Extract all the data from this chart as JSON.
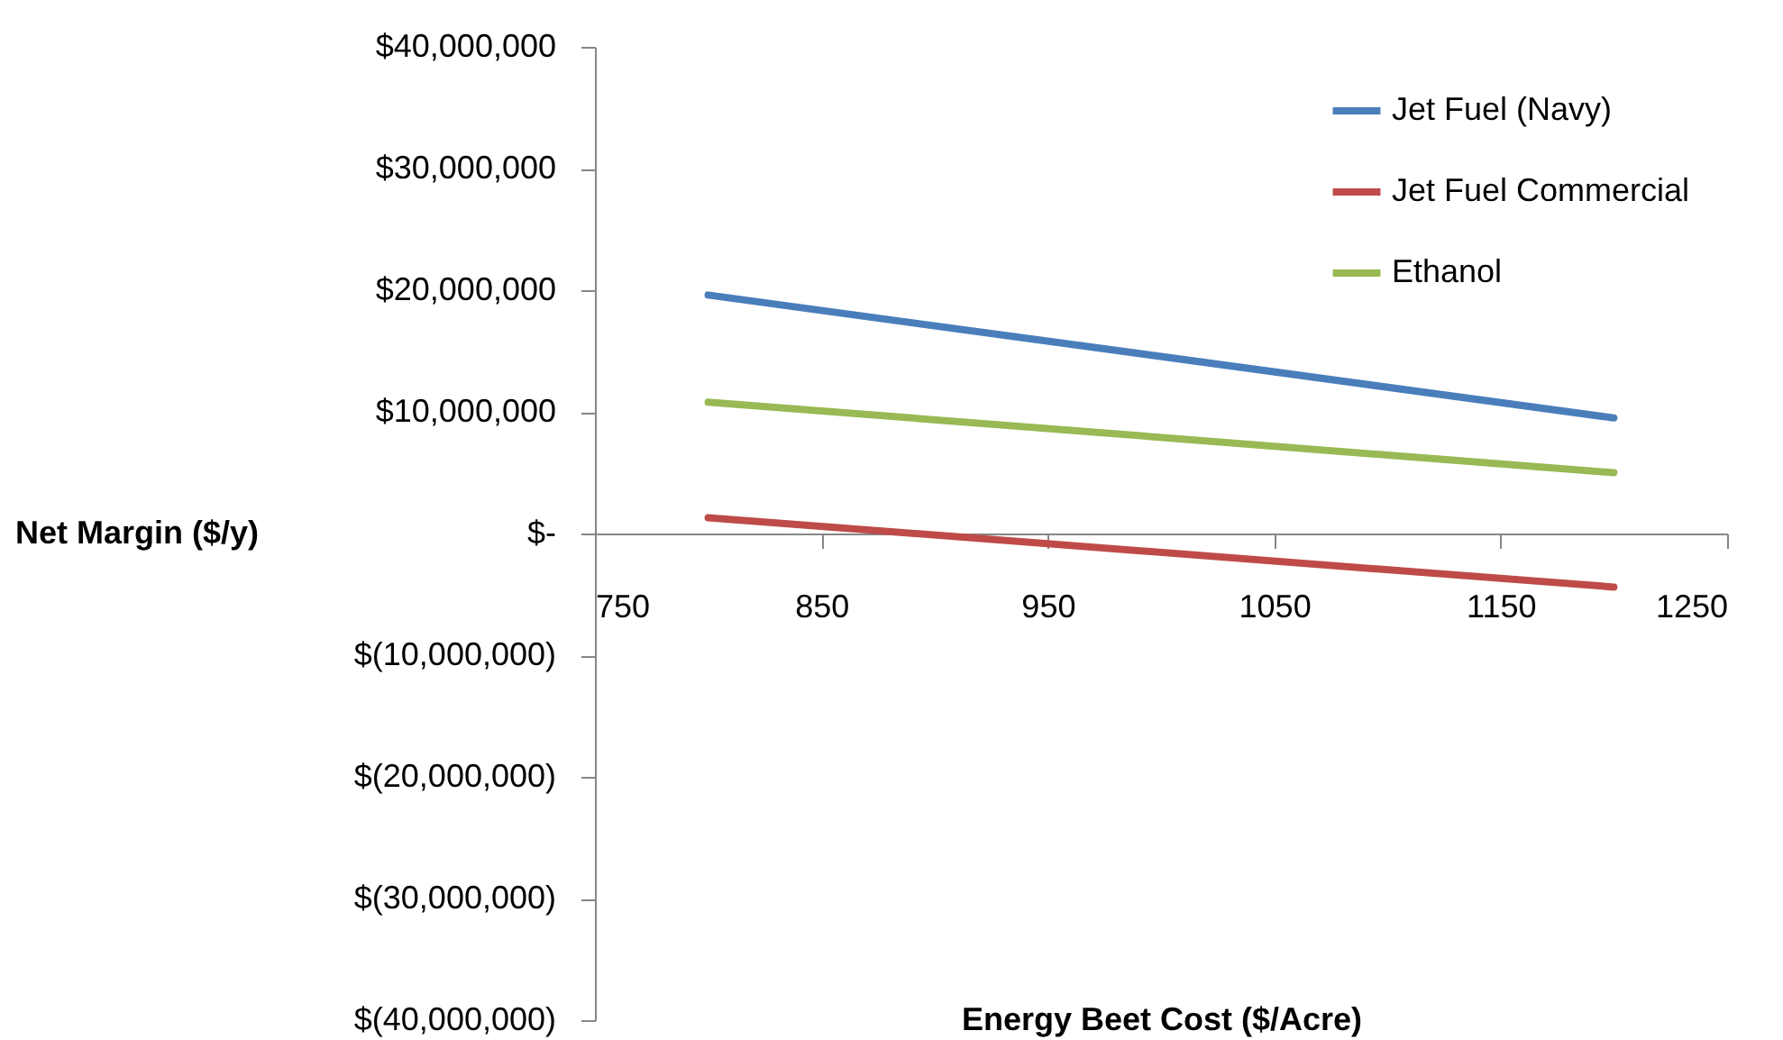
{
  "chart_data": {
    "type": "line",
    "xlabel": "Energy Beet Cost ($/Acre)",
    "ylabel": "Net Margin ($/y)",
    "x": [
      800,
      1200
    ],
    "series": [
      {
        "name": "Jet Fuel (Navy)",
        "color": "#4a7ebb",
        "values": [
          19600000,
          9500000
        ]
      },
      {
        "name": "Jet Fuel Commercial",
        "color": "#be4b48",
        "values": [
          1300000,
          -4400000
        ]
      },
      {
        "name": "Ethanol",
        "color": "#98b954",
        "values": [
          10800000,
          5000000
        ]
      }
    ],
    "xlim": [
      750,
      1250
    ],
    "xticks": [
      750,
      850,
      950,
      1050,
      1150,
      1250
    ],
    "ylim": [
      -40000000,
      40000000
    ],
    "yticks": [
      {
        "value": -40000000,
        "label": "$(40,000,000)"
      },
      {
        "value": -30000000,
        "label": "$(30,000,000)"
      },
      {
        "value": -20000000,
        "label": "$(20,000,000)"
      },
      {
        "value": -10000000,
        "label": "$(10,000,000)"
      },
      {
        "value": 0,
        "label": "$-"
      },
      {
        "value": 10000000,
        "label": "$10,000,000"
      },
      {
        "value": 20000000,
        "label": "$20,000,000"
      },
      {
        "value": 30000000,
        "label": "$30,000,000"
      },
      {
        "value": 40000000,
        "label": "$40,000,000"
      }
    ],
    "grid": false,
    "legend": "top right",
    "marker": "none",
    "line_style": "solid"
  }
}
